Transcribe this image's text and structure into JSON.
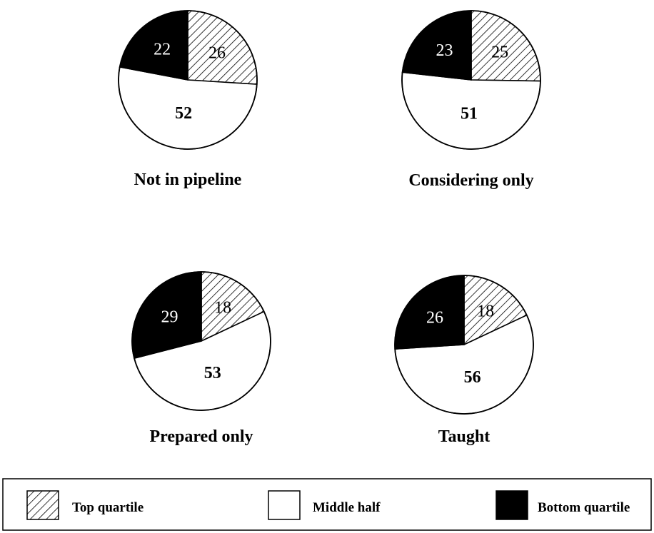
{
  "chart_data": [
    {
      "type": "pie",
      "title": "Not in pipeline",
      "slices": [
        {
          "category": "Top quartile",
          "value": 26
        },
        {
          "category": "Middle half",
          "value": 52
        },
        {
          "category": "Bottom quartile",
          "value": 22
        }
      ]
    },
    {
      "type": "pie",
      "title": "Considering only",
      "slices": [
        {
          "category": "Top quartile",
          "value": 25
        },
        {
          "category": "Middle half",
          "value": 51
        },
        {
          "category": "Bottom quartile",
          "value": 23
        }
      ]
    },
    {
      "type": "pie",
      "title": "Prepared only",
      "slices": [
        {
          "category": "Top quartile",
          "value": 18
        },
        {
          "category": "Middle half",
          "value": 53
        },
        {
          "category": "Bottom quartile",
          "value": 29
        }
      ]
    },
    {
      "type": "pie",
      "title": "Taught",
      "slices": [
        {
          "category": "Top quartile",
          "value": 18
        },
        {
          "category": "Middle half",
          "value": 56
        },
        {
          "category": "Bottom quartile",
          "value": 26
        }
      ]
    }
  ],
  "legend": {
    "placement": "bottom",
    "items": [
      {
        "label": "Top quartile",
        "fill": "hatched"
      },
      {
        "label": "Middle half",
        "fill": "#ffffff"
      },
      {
        "label": "Bottom quartile",
        "fill": "#000000"
      }
    ]
  }
}
